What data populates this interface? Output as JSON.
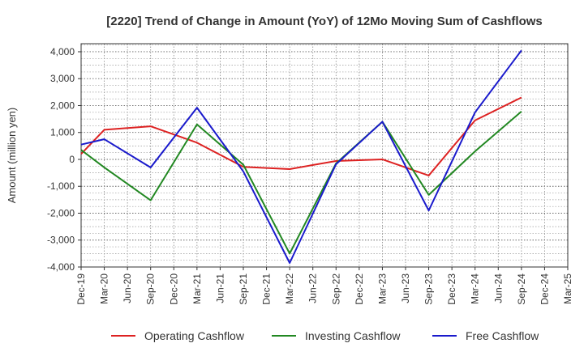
{
  "chart_data": {
    "type": "line",
    "title": "[2220]  Trend of Change in Amount (YoY) of 12Mo Moving Sum of Cashflows",
    "xlabel": "",
    "ylabel": "Amount (million yen)",
    "ylim": [
      -4000,
      4300
    ],
    "yticks": [
      -4000,
      -3000,
      -2000,
      -1000,
      0,
      1000,
      2000,
      3000,
      4000
    ],
    "ytick_labels": [
      "-4,000",
      "-3,000",
      "-2,000",
      "-1,000",
      "0",
      "1,000",
      "2,000",
      "3,000",
      "4,000"
    ],
    "categories": [
      "Dec-19",
      "Mar-20",
      "Jun-20",
      "Sep-20",
      "Dec-20",
      "Mar-21",
      "Jun-21",
      "Sep-21",
      "Dec-21",
      "Mar-22",
      "Jun-22",
      "Sep-22",
      "Dec-22",
      "Mar-23",
      "Jun-23",
      "Sep-23",
      "Dec-23",
      "Mar-24",
      "Jun-24",
      "Sep-24",
      "Dec-24",
      "Mar-25"
    ],
    "grid": true,
    "legend_position": "bottom",
    "series": [
      {
        "name": "Operating Cashflow",
        "color": "#dd2222",
        "values": [
          {
            "i": 0,
            "v": 200
          },
          {
            "i": 1,
            "v": 1100
          },
          {
            "i": 3,
            "v": 1230
          },
          {
            "i": 5,
            "v": 620
          },
          {
            "i": 7,
            "v": -280
          },
          {
            "i": 9,
            "v": -360
          },
          {
            "i": 11,
            "v": -60
          },
          {
            "i": 13,
            "v": 0
          },
          {
            "i": 15,
            "v": -600
          },
          {
            "i": 17,
            "v": 1450
          },
          {
            "i": 19,
            "v": 2300
          }
        ]
      },
      {
        "name": "Investing Cashflow",
        "color": "#228822",
        "values": [
          {
            "i": 0,
            "v": 350
          },
          {
            "i": 1,
            "v": -300
          },
          {
            "i": 3,
            "v": -1520
          },
          {
            "i": 5,
            "v": 1300
          },
          {
            "i": 7,
            "v": -200
          },
          {
            "i": 9,
            "v": -3500
          },
          {
            "i": 11,
            "v": -150
          },
          {
            "i": 13,
            "v": 1400
          },
          {
            "i": 15,
            "v": -1320
          },
          {
            "i": 17,
            "v": 300
          },
          {
            "i": 19,
            "v": 1780
          }
        ]
      },
      {
        "name": "Free Cashflow",
        "color": "#1a1acc",
        "values": [
          {
            "i": 0,
            "v": 550
          },
          {
            "i": 1,
            "v": 750
          },
          {
            "i": 3,
            "v": -300
          },
          {
            "i": 5,
            "v": 1920
          },
          {
            "i": 7,
            "v": -450
          },
          {
            "i": 9,
            "v": -3850
          },
          {
            "i": 11,
            "v": -180
          },
          {
            "i": 13,
            "v": 1400
          },
          {
            "i": 15,
            "v": -1900
          },
          {
            "i": 17,
            "v": 1750
          },
          {
            "i": 19,
            "v": 4050
          }
        ]
      }
    ]
  }
}
